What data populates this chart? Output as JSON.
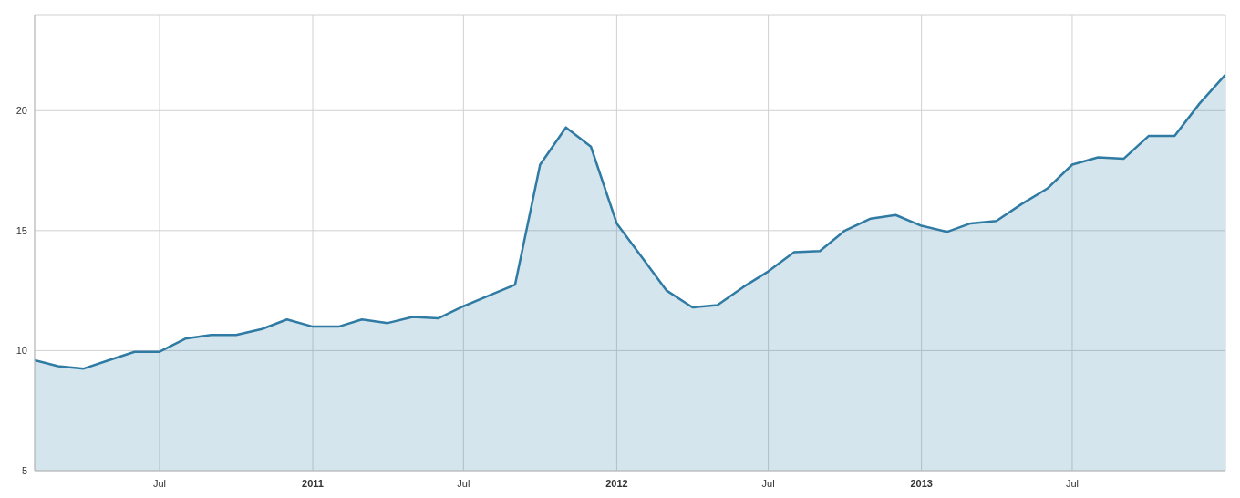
{
  "chart_data": {
    "type": "area",
    "x": [
      "2010-02",
      "2010-03",
      "2010-04",
      "2010-05",
      "2010-06",
      "2010-07",
      "2010-08",
      "2010-09",
      "2010-10",
      "2010-11",
      "2010-12",
      "2011-01",
      "2011-02",
      "2011-03",
      "2011-04",
      "2011-05",
      "2011-06",
      "2011-07",
      "2011-08",
      "2011-09",
      "2011-10",
      "2011-11",
      "2011-12",
      "2012-01",
      "2012-02",
      "2012-03",
      "2012-04",
      "2012-05",
      "2012-06",
      "2012-07",
      "2012-08",
      "2012-09",
      "2012-10",
      "2012-11",
      "2012-12",
      "2013-01",
      "2013-02",
      "2013-03",
      "2013-04",
      "2013-05",
      "2013-06",
      "2013-07",
      "2013-08",
      "2013-09",
      "2013-10",
      "2013-11",
      "2013-12",
      "2014-01"
    ],
    "series": [
      {
        "color": "#2f7ba3",
        "values": [
          9.6,
          9.35,
          9.25,
          9.6,
          9.95,
          9.95,
          10.5,
          10.65,
          10.65,
          10.9,
          11.3,
          11.0,
          11.0,
          11.3,
          11.15,
          11.4,
          11.35,
          11.85,
          12.3,
          12.75,
          17.75,
          19.3,
          18.5,
          15.3,
          13.85,
          12.5,
          11.8,
          11.9,
          12.65,
          13.3,
          14.1,
          14.15,
          15.0,
          15.5,
          15.65,
          15.2,
          14.95,
          15.3,
          15.4,
          16.1,
          16.75,
          17.75,
          18.05,
          18.0,
          18.95,
          18.95,
          20.3,
          21.5
        ]
      }
    ],
    "xlim": [
      "2010-02",
      "2014-01"
    ],
    "xticks": [
      {
        "value": "2010-07",
        "label": "Jul"
      },
      {
        "value": "2011-01",
        "label": "2011"
      },
      {
        "value": "2011-07",
        "label": "Jul"
      },
      {
        "value": "2012-01",
        "label": "2012"
      },
      {
        "value": "2012-07",
        "label": "Jul"
      },
      {
        "value": "2013-01",
        "label": "2013"
      },
      {
        "value": "2013-07",
        "label": "Jul"
      }
    ],
    "ylim": [
      5,
      24
    ],
    "yticks": [
      5,
      10,
      15,
      20
    ],
    "grid": true,
    "marker": "none",
    "line_style": "solid"
  }
}
